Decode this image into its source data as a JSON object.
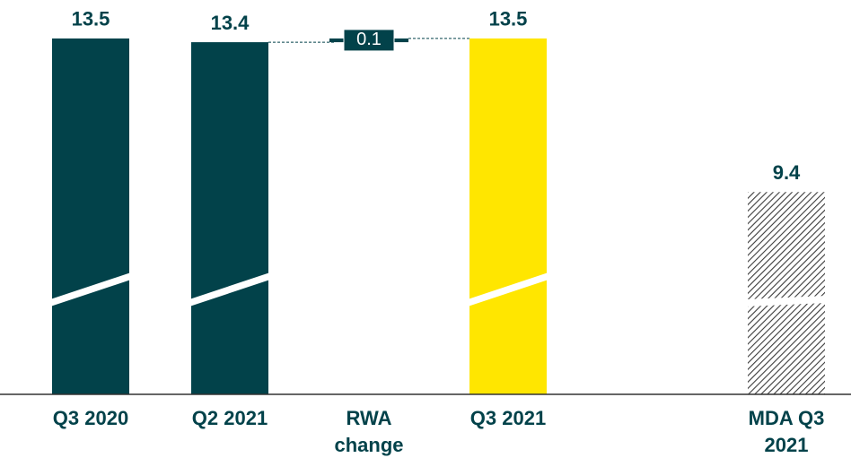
{
  "chart_data": {
    "type": "waterfall",
    "categories": [
      "Q3 2020",
      "Q2 2021",
      "RWA change",
      "Q3 2021",
      "MDA Q3 2021"
    ],
    "values": [
      13.5,
      13.4,
      0.1,
      13.5,
      9.4
    ],
    "measure": [
      "absolute",
      "absolute",
      "relative",
      "absolute",
      "absolute"
    ],
    "colors": [
      "#02424a",
      "#02424a",
      "#02424a",
      "#ffe600",
      "#02424a"
    ],
    "hatched": [
      false,
      false,
      false,
      false,
      true
    ],
    "axis_break": true,
    "ylim": [
      4,
      14
    ]
  }
}
